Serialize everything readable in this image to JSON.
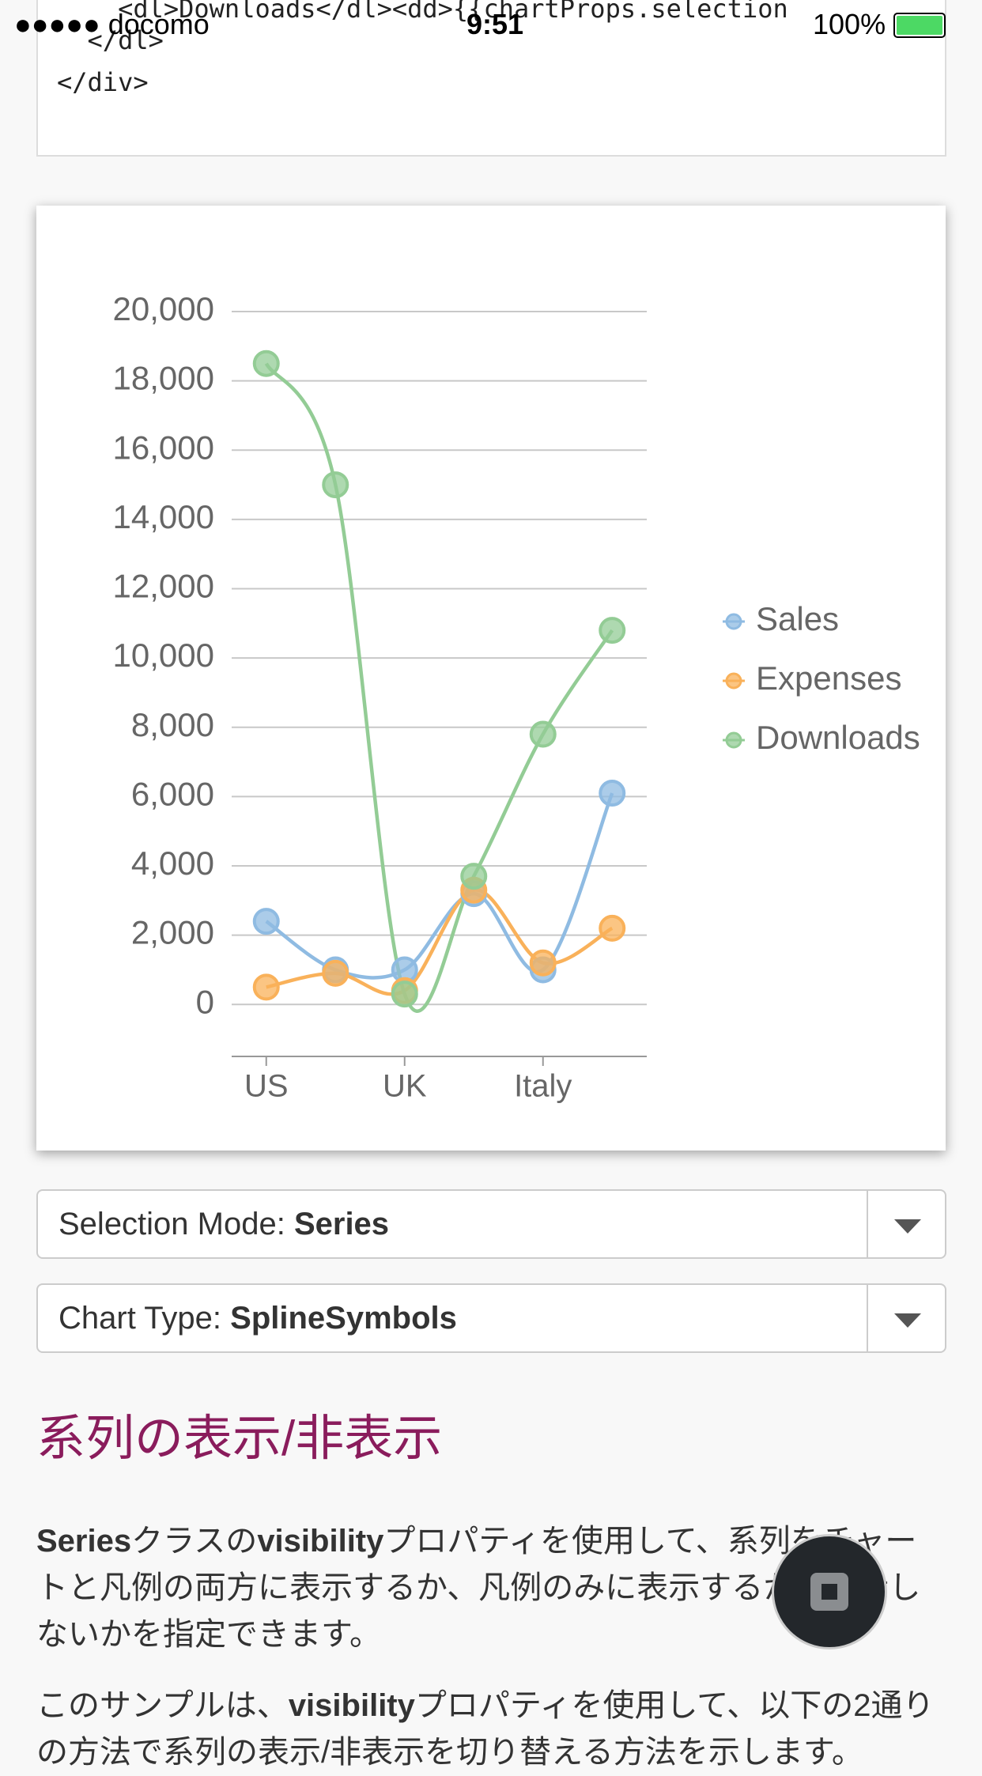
{
  "status_bar": {
    "carrier": "●●●●● docomo",
    "time": "9:51",
    "battery": "100%"
  },
  "code": {
    "lines": [
      "    <dl>Downloads</dl><dd>{{chartProps.selection",
      "  </dl>",
      "</div>"
    ]
  },
  "chart_data": {
    "type": "spline",
    "categories": [
      "US",
      null,
      "UK",
      null,
      "Italy",
      null
    ],
    "series": [
      {
        "name": "Sales",
        "color": "#8fbbe2",
        "values": [
          2400,
          1000,
          1000,
          3200,
          1000,
          6100
        ]
      },
      {
        "name": "Expenses",
        "color": "#f9b15a",
        "values": [
          500,
          900,
          400,
          3300,
          1200,
          2200
        ]
      },
      {
        "name": "Downloads",
        "color": "#93cc95",
        "values": [
          18500,
          15000,
          300,
          3700,
          7800,
          10800
        ]
      }
    ],
    "ylim": [
      -1500,
      20000
    ],
    "yticks": [
      0,
      {
        "value": 2000,
        "label": "2,000"
      },
      {
        "value": 4000,
        "label": "4,000"
      },
      {
        "value": 6000,
        "label": "6,000"
      },
      {
        "value": 8000,
        "label": "8,000"
      },
      {
        "value": 10000,
        "label": "10,000"
      },
      {
        "value": 12000,
        "label": "12,000"
      },
      {
        "value": 14000,
        "label": "14,000"
      },
      {
        "value": 16000,
        "label": "16,000"
      },
      {
        "value": 18000,
        "label": "18,000"
      },
      {
        "value": 20000,
        "label": "20,000"
      }
    ],
    "grid": true,
    "legend": "right"
  },
  "controls": [
    {
      "label": "Selection Mode: ",
      "value": "Series"
    },
    {
      "label": "Chart Type: ",
      "value": "SplineSymbols"
    }
  ],
  "article": {
    "heading": "系列の表示/非表示",
    "paragraphs": [
      [
        {
          "text": "Series",
          "bold": true
        },
        {
          "text": "クラスの",
          "bold": false
        },
        {
          "text": "visibility",
          "bold": true
        },
        {
          "text": "プロパティを使用して、系列をチャートと凡例の両方に表示するか、凡例のみに表示するか、表示しないかを指定できます。",
          "bold": false
        }
      ],
      [
        {
          "text": "このサンプルは、",
          "bold": false
        },
        {
          "text": "visibility",
          "bold": true
        },
        {
          "text": "プロパティを使用して、以下の2通りの方法で系列の表示/非表示を切り替える方法を示します。",
          "bold": false
        }
      ]
    ]
  }
}
